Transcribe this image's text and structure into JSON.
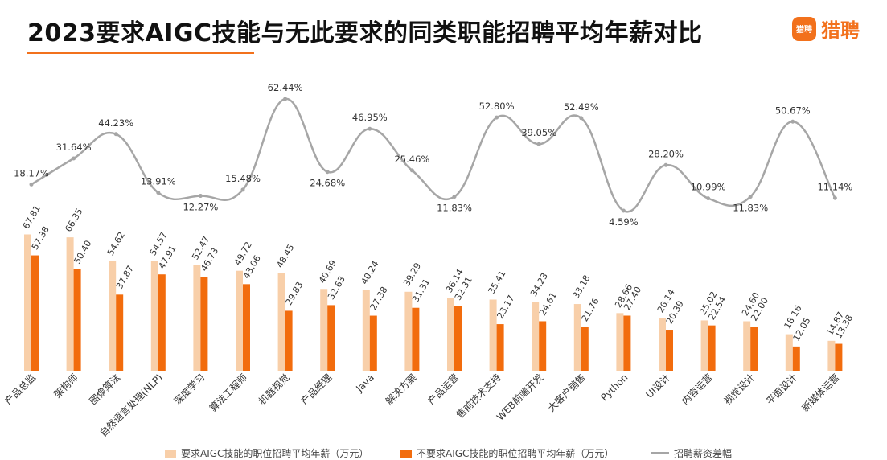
{
  "title": "2023要求AIGC技能与无此要求的同类职能招聘平均年薪对比",
  "logo": {
    "mark": "猎聘",
    "text": "猎聘"
  },
  "colors": {
    "with_aigc": "#f8cfa9",
    "without_aigc": "#f26c0d",
    "gap_line": "#a6a6a6",
    "accent": "#f2711c"
  },
  "legend": {
    "with_aigc": "要求AIGC技能的职位招聘平均年薪（万元）",
    "without_aigc": "不要求AIGC技能的职位招聘平均年薪（万元）",
    "gap": "招聘薪资差幅"
  },
  "chart_data": {
    "type": "bar",
    "categories": [
      "产品总监",
      "架构师",
      "图像算法",
      "自然语言处理(NLP)",
      "深度学习",
      "算法工程师",
      "机器视觉",
      "产品经理",
      "Java",
      "解决方案",
      "产品运营",
      "售前技术支持",
      "WEB前端开发",
      "大客户销售",
      "Python",
      "UI设计",
      "内容运营",
      "视觉设计",
      "平面设计",
      "新媒体运营"
    ],
    "series": [
      {
        "name": "要求AIGC技能的职位招聘平均年薪（万元）",
        "type": "bar",
        "values": [
          67.81,
          66.35,
          54.62,
          54.57,
          52.47,
          49.72,
          48.45,
          40.69,
          40.24,
          39.29,
          36.14,
          35.41,
          34.23,
          33.18,
          28.66,
          26.14,
          25.02,
          24.6,
          18.16,
          14.87
        ],
        "labels": [
          "67.81",
          "66.35",
          "54.62",
          "54.57",
          "52.47",
          "49.72",
          "48.45",
          "40.69",
          "40.24",
          "39.29",
          "36.14",
          "35.41",
          "34.23",
          "33.18",
          "28.66",
          "26.14",
          "25.02",
          "24.60",
          "18.16",
          "14.87"
        ]
      },
      {
        "name": "不要求AIGC技能的职位招聘平均年薪（万元）",
        "type": "bar",
        "values": [
          57.38,
          50.4,
          37.87,
          47.91,
          46.73,
          43.06,
          29.83,
          32.63,
          27.38,
          31.31,
          32.31,
          23.17,
          24.61,
          21.76,
          27.4,
          20.39,
          22.54,
          22.0,
          12.05,
          13.38
        ],
        "labels": [
          "57.38",
          "50.40",
          "37.87",
          "47.91",
          "46.73",
          "43.06",
          "29.83",
          "32.63",
          "27.38",
          "31.31",
          "32.31",
          "23.17",
          "24.61",
          "21.76",
          "27.40",
          "20.39",
          "22.54",
          "22.00",
          "12.05",
          "13.38"
        ]
      },
      {
        "name": "招聘薪资差幅",
        "type": "line",
        "values": [
          18.17,
          31.64,
          44.23,
          13.91,
          12.27,
          15.48,
          62.44,
          24.68,
          46.95,
          25.46,
          11.83,
          52.8,
          39.05,
          52.49,
          4.59,
          28.2,
          10.99,
          11.83,
          50.67,
          11.14
        ],
        "labels": [
          "18.17%",
          "31.64%",
          "44.23%",
          "13.91%",
          "12.27%",
          "15.48%",
          "62.44%",
          "24.68%",
          "46.95%",
          "25.46%",
          "11.83%",
          "52.80%",
          "39.05%",
          "52.49%",
          "4.59%",
          "28.20%",
          "10.99%",
          "11.83%",
          "50.67%",
          "11.14%"
        ],
        "label_position": [
          "above",
          "above",
          "above",
          "above",
          "below",
          "above",
          "above",
          "below",
          "above",
          "above",
          "below",
          "above",
          "above",
          "above",
          "below",
          "above",
          "above",
          "below",
          "above",
          "above"
        ]
      }
    ],
    "grid": false,
    "legend_position": "bottom"
  }
}
